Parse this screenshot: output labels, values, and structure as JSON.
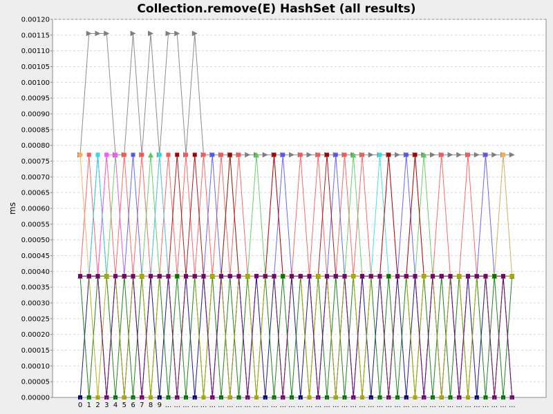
{
  "chart_data": {
    "type": "line",
    "title": "Collection.remove(E) HashSet (all results)",
    "ylabel": "ms",
    "xlabel": "",
    "ylim": [
      0,
      0.0012
    ],
    "y_ticks": [
      "0.00000",
      "0.00005",
      "0.00010",
      "0.00015",
      "0.00020",
      "0.00025",
      "0.00030",
      "0.00035",
      "0.00040",
      "0.00045",
      "0.00050",
      "0.00055",
      "0.00060",
      "0.00065",
      "0.00070",
      "0.00075",
      "0.00080",
      "0.00085",
      "0.00090",
      "0.00095",
      "0.00100",
      "0.00105",
      "0.00110",
      "0.00115",
      "0.00120"
    ],
    "x_ticks": [
      "0",
      "1",
      "2",
      "3",
      "4",
      "5",
      "6",
      "7",
      "8",
      "9",
      "...",
      "...",
      "...",
      "...",
      "...",
      "...",
      "...",
      "...",
      "...",
      "...",
      "...",
      "...",
      "...",
      "...",
      "...",
      "...",
      "...",
      "...",
      "...",
      "...",
      "...",
      "...",
      "...",
      "...",
      "...",
      "...",
      "...",
      "...",
      "...",
      "...",
      "...",
      "...",
      "...",
      "...",
      "...",
      "...",
      "...",
      "...",
      "...",
      "..."
    ],
    "grid": true,
    "levels_ms": [
      0.0,
      0.000385,
      0.00077,
      0.001155
    ],
    "series": [
      {
        "color": "#7f7f7f",
        "marker": "triangle-right",
        "values": [
          0.00077,
          0.001155,
          0.001155,
          0.001155,
          0.00077,
          0.00077,
          0.001155,
          0.00077,
          0.001155,
          0.00077,
          0.001155,
          0.001155,
          0.00077,
          0.001155,
          0.00077,
          0.00077,
          0.00077,
          0.00077,
          0.00077,
          0.00077,
          0.00077,
          0.00077,
          0.00077,
          0.00077,
          0.00077,
          0.00077,
          0.00077,
          0.00077,
          0.00077,
          0.00077,
          0.00077,
          0.00077,
          0.00077,
          0.00077,
          0.00077,
          0.00077,
          0.00077,
          0.00077,
          0.00077,
          0.00077,
          0.00077,
          0.00077,
          0.00077,
          0.00077,
          0.00077,
          0.00077,
          0.00077,
          0.00077,
          0.00077,
          0.00077
        ]
      },
      {
        "color": "#ff5555",
        "marker": "square",
        "values": [
          0.000385,
          0.00077,
          0.000385,
          0.00077,
          0.000385,
          0.00077,
          0.000385,
          0.00077,
          0.000385,
          0.000385,
          0.00077,
          0.000385,
          0.00077,
          0.000385,
          0.00077,
          0.000385,
          0.00077,
          0.000385,
          0.00077,
          0.000385,
          0.000385,
          0.000385,
          0.00077,
          0.000385,
          0.000385,
          0.00077,
          0.000385,
          0.00077,
          0.000385,
          0.000385,
          0.00077,
          0.000385,
          0.00077,
          0.000385,
          0.000385,
          0.00077,
          0.000385,
          0.000385,
          0.00077,
          0.000385,
          0.000385,
          0.00077,
          0.000385,
          0.000385,
          0.00077,
          0.000385,
          0.000385,
          0.000385,
          0.000385,
          0.000385
        ]
      },
      {
        "color": "#5555ff",
        "marker": "square",
        "values": [
          0.000385,
          0.000385,
          0.00077,
          0.000385,
          0.000385,
          0.000385,
          0.00077,
          0.000385,
          0.000385,
          0.000385,
          0.000385,
          0.000385,
          0.000385,
          0.000385,
          0.000385,
          0.00077,
          0.000385,
          0.000385,
          0.000385,
          0.000385,
          0.000385,
          0.000385,
          0.000385,
          0.00077,
          0.000385,
          0.000385,
          0.000385,
          0.000385,
          0.000385,
          0.00077,
          0.000385,
          0.000385,
          0.000385,
          0.000385,
          0.000385,
          0.000385,
          0.000385,
          0.00077,
          0.000385,
          0.000385,
          0.000385,
          0.000385,
          0.000385,
          0.000385,
          0.000385,
          0.000385,
          0.00077,
          0.000385,
          0.000385,
          0.000385
        ]
      },
      {
        "color": "#55cc55",
        "marker": "triangle-up",
        "values": [
          0.000385,
          0.000385,
          0.000385,
          0.000385,
          0.00077,
          0.000385,
          0.000385,
          0.000385,
          0.00077,
          0.000385,
          0.000385,
          0.000385,
          0.000385,
          0.000385,
          0.000385,
          0.000385,
          0.000385,
          0.00077,
          0.000385,
          0.000385,
          0.00077,
          0.000385,
          0.000385,
          0.000385,
          0.000385,
          0.000385,
          0.000385,
          0.000385,
          0.000385,
          0.000385,
          0.000385,
          0.00077,
          0.000385,
          0.000385,
          0.000385,
          0.000385,
          0.000385,
          0.000385,
          0.000385,
          0.00077,
          0.000385,
          0.000385,
          0.000385,
          0.000385,
          0.000385,
          0.000385,
          0.000385,
          0.000385,
          0.000385,
          0.000385
        ]
      },
      {
        "color": "#ff55ff",
        "marker": "square",
        "values": [
          0.000385,
          0.000385,
          0.000385,
          0.00077,
          0.00077,
          0.000385,
          0.000385,
          0.000385,
          0.000385,
          0.00077,
          0.000385,
          0.000385,
          0.000385,
          0.000385,
          0.000385,
          0.000385,
          0.000385,
          0.000385,
          0.000385,
          0.000385,
          0.000385,
          0.000385,
          0.000385,
          0.000385,
          0.000385,
          0.000385,
          0.000385,
          0.000385,
          0.000385,
          0.000385,
          0.000385,
          0.000385,
          0.000385,
          0.000385,
          0.000385,
          0.000385,
          0.000385,
          0.000385,
          0.000385,
          0.000385,
          0.000385,
          0.000385,
          0.000385,
          0.000385,
          0.000385,
          0.000385,
          0.000385,
          0.000385,
          0.000385,
          0.000385
        ]
      },
      {
        "color": "#33dddd",
        "marker": "square",
        "values": [
          0.000385,
          0.000385,
          0.00077,
          0.000385,
          0.000385,
          0.000385,
          0.000385,
          0.000385,
          0.000385,
          0.00077,
          0.000385,
          0.000385,
          0.000385,
          0.000385,
          0.000385,
          0.000385,
          0.000385,
          0.000385,
          0.000385,
          0.000385,
          0.000385,
          0.000385,
          0.000385,
          0.000385,
          0.000385,
          0.000385,
          0.000385,
          0.000385,
          0.000385,
          0.000385,
          0.000385,
          0.000385,
          0.000385,
          0.000385,
          0.00077,
          0.000385,
          0.000385,
          0.000385,
          0.000385,
          0.000385,
          0.000385,
          0.000385,
          0.000385,
          0.000385,
          0.000385,
          0.000385,
          0.000385,
          0.000385,
          0.00077,
          0.000385
        ]
      },
      {
        "color": "#aa0000",
        "marker": "square",
        "values": [
          0.000385,
          0.000385,
          0.000385,
          0.000385,
          0.000385,
          0.000385,
          0.000385,
          0.000385,
          0.000385,
          0.000385,
          0.000385,
          0.00077,
          0.000385,
          0.00077,
          0.000385,
          0.000385,
          0.000385,
          0.00077,
          0.000385,
          0.000385,
          0.000385,
          0.000385,
          0.00077,
          0.000385,
          0.000385,
          0.000385,
          0.000385,
          0.000385,
          0.00077,
          0.000385,
          0.000385,
          0.000385,
          0.000385,
          0.000385,
          0.000385,
          0.00077,
          0.000385,
          0.000385,
          0.00077,
          0.000385,
          0.000385,
          0.000385,
          0.000385,
          0.000385,
          0.000385,
          0.000385,
          0.000385,
          0.000385,
          0.000385,
          0.000385
        ]
      },
      {
        "color": "#ffaa55",
        "marker": "circle",
        "values": [
          0.00077,
          0.000385,
          0.000385,
          0.000385,
          0.000385,
          0.000385,
          0.000385,
          0.000385,
          0.000385,
          0.000385,
          0.000385,
          0.000385,
          0.000385,
          0.000385,
          0.000385,
          0.000385,
          0.000385,
          0.000385,
          0.000385,
          0.000385,
          0.000385,
          0.000385,
          0.000385,
          0.000385,
          0.000385,
          0.000385,
          0.000385,
          0.000385,
          0.000385,
          0.000385,
          0.000385,
          0.000385,
          0.000385,
          0.000385,
          0.000385,
          0.000385,
          0.000385,
          0.000385,
          0.000385,
          0.000385,
          0.000385,
          0.000385,
          0.000385,
          0.000385,
          0.000385,
          0.000385,
          0.000385,
          0.000385,
          0.00077,
          0.000385
        ]
      },
      {
        "color": "#000077",
        "marker": "square",
        "values": [
          0.0,
          0.000385,
          0.000385,
          0.0,
          0.000385,
          0.0,
          0.000385,
          0.0,
          0.000385,
          0.0,
          0.000385,
          0.0,
          0.000385,
          0.0,
          0.000385,
          0.0,
          0.000385,
          0.0,
          0.000385,
          0.0,
          0.000385,
          0.0,
          0.000385,
          0.0,
          0.000385,
          0.0,
          0.000385,
          0.0,
          0.000385,
          0.0,
          0.000385,
          0.0,
          0.000385,
          0.0,
          0.000385,
          0.0,
          0.000385,
          0.0,
          0.000385,
          0.0,
          0.000385,
          0.0,
          0.000385,
          0.0,
          0.000385,
          0.0,
          0.000385,
          0.0,
          0.000385,
          0.0
        ]
      },
      {
        "color": "#007700",
        "marker": "square",
        "values": [
          0.000385,
          0.0,
          0.000385,
          0.000385,
          0.0,
          0.000385,
          0.0,
          0.000385,
          0.0,
          0.000385,
          0.0,
          0.000385,
          0.0,
          0.000385,
          0.0,
          0.000385,
          0.0,
          0.000385,
          0.0,
          0.000385,
          0.0,
          0.000385,
          0.0,
          0.000385,
          0.0,
          0.000385,
          0.0,
          0.000385,
          0.0,
          0.000385,
          0.0,
          0.000385,
          0.0,
          0.000385,
          0.0,
          0.000385,
          0.0,
          0.000385,
          0.0,
          0.000385,
          0.0,
          0.000385,
          0.0,
          0.000385,
          0.0,
          0.000385,
          0.0,
          0.000385,
          0.0,
          0.000385
        ]
      },
      {
        "color": "#aaaa00",
        "marker": "square",
        "values": [
          0.000385,
          0.000385,
          0.0,
          0.000385,
          0.000385,
          0.0,
          0.000385,
          0.000385,
          0.0,
          0.000385,
          0.000385,
          0.0,
          0.000385,
          0.000385,
          0.0,
          0.000385,
          0.000385,
          0.0,
          0.000385,
          0.000385,
          0.0,
          0.000385,
          0.000385,
          0.0,
          0.000385,
          0.000385,
          0.0,
          0.000385,
          0.000385,
          0.0,
          0.000385,
          0.000385,
          0.0,
          0.000385,
          0.000385,
          0.0,
          0.000385,
          0.000385,
          0.0,
          0.000385,
          0.000385,
          0.0,
          0.000385,
          0.000385,
          0.0,
          0.000385,
          0.000385,
          0.0,
          0.000385,
          0.000385
        ]
      },
      {
        "color": "#770077",
        "marker": "square",
        "values": [
          0.000385,
          0.000385,
          0.000385,
          0.0,
          0.000385,
          0.000385,
          0.000385,
          0.0,
          0.000385,
          0.000385,
          0.000385,
          0.0,
          0.000385,
          0.000385,
          0.000385,
          0.0,
          0.000385,
          0.000385,
          0.000385,
          0.0,
          0.000385,
          0.000385,
          0.000385,
          0.0,
          0.000385,
          0.000385,
          0.000385,
          0.0,
          0.000385,
          0.000385,
          0.000385,
          0.0,
          0.000385,
          0.000385,
          0.000385,
          0.0,
          0.000385,
          0.000385,
          0.000385,
          0.0,
          0.000385,
          0.000385,
          0.000385,
          0.0,
          0.000385,
          0.000385,
          0.000385,
          0.0,
          0.000385,
          0.0
        ]
      }
    ]
  }
}
